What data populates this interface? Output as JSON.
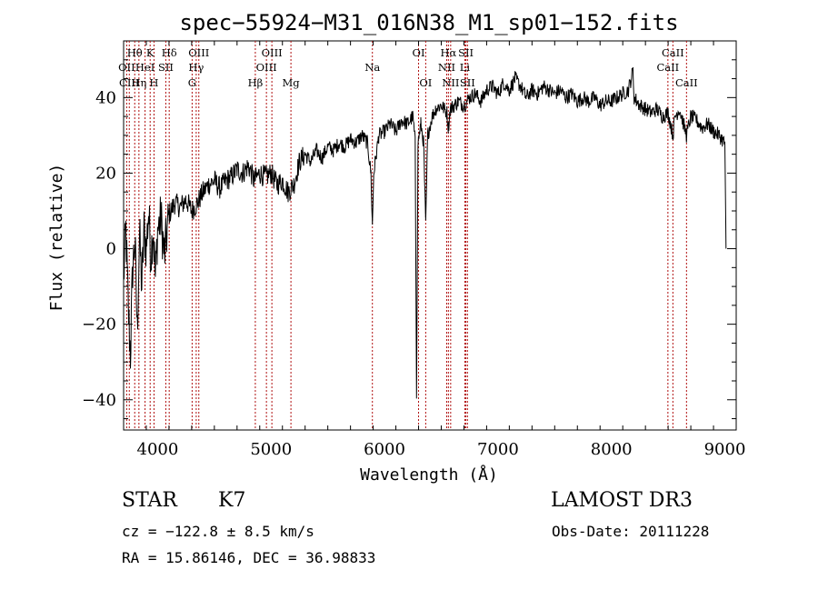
{
  "chart_data": {
    "type": "line",
    "title": "spec−55924−M31_016N38_M1_sp01−152.fits",
    "xlabel": "Wavelength (Å)",
    "ylabel": "Flux (relative)",
    "xlim": [
      3700,
      9100
    ],
    "ylim": [
      -48,
      55
    ],
    "xticks": [
      4000,
      5000,
      6000,
      7000,
      8000,
      9000
    ],
    "yticks": [
      -40,
      -20,
      0,
      20,
      40
    ],
    "ytick_labels": [
      "−40",
      "−20",
      "0",
      "20",
      "40"
    ],
    "series": [
      {
        "name": "flux",
        "anchors": [
          [
            3700,
            -8
          ],
          [
            3720,
            5
          ],
          [
            3740,
            -15
          ],
          [
            3760,
            -28
          ],
          [
            3780,
            -5
          ],
          [
            3800,
            2
          ],
          [
            3820,
            -22
          ],
          [
            3840,
            4
          ],
          [
            3860,
            -10
          ],
          [
            3880,
            5
          ],
          [
            3900,
            0
          ],
          [
            3920,
            10
          ],
          [
            3940,
            -2
          ],
          [
            3960,
            6
          ],
          [
            3980,
            -8
          ],
          [
            4000,
            5
          ],
          [
            4030,
            8
          ],
          [
            4060,
            -2
          ],
          [
            4100,
            9
          ],
          [
            4150,
            12
          ],
          [
            4200,
            11
          ],
          [
            4250,
            13
          ],
          [
            4300,
            10
          ],
          [
            4350,
            12
          ],
          [
            4400,
            15
          ],
          [
            4450,
            17
          ],
          [
            4500,
            18
          ],
          [
            4550,
            16
          ],
          [
            4600,
            18
          ],
          [
            4650,
            19
          ],
          [
            4700,
            21
          ],
          [
            4750,
            20
          ],
          [
            4800,
            22
          ],
          [
            4850,
            18
          ],
          [
            4900,
            20
          ],
          [
            4950,
            19
          ],
          [
            5000,
            20
          ],
          [
            5050,
            17
          ],
          [
            5100,
            18
          ],
          [
            5150,
            15
          ],
          [
            5200,
            17
          ],
          [
            5250,
            23
          ],
          [
            5300,
            25
          ],
          [
            5350,
            23
          ],
          [
            5400,
            26
          ],
          [
            5450,
            24
          ],
          [
            5500,
            27
          ],
          [
            5550,
            26
          ],
          [
            5600,
            28
          ],
          [
            5650,
            27
          ],
          [
            5700,
            29
          ],
          [
            5750,
            28
          ],
          [
            5800,
            30
          ],
          [
            5850,
            28
          ],
          [
            5880,
            20
          ],
          [
            5893,
            6
          ],
          [
            5905,
            20
          ],
          [
            5950,
            30
          ],
          [
            6000,
            31
          ],
          [
            6050,
            33
          ],
          [
            6100,
            31
          ],
          [
            6150,
            34
          ],
          [
            6200,
            33
          ],
          [
            6250,
            35
          ],
          [
            6270,
            28
          ],
          [
            6282,
            -38
          ],
          [
            6295,
            28
          ],
          [
            6320,
            33
          ],
          [
            6345,
            28
          ],
          [
            6363,
            6
          ],
          [
            6380,
            30
          ],
          [
            6420,
            35
          ],
          [
            6450,
            37
          ],
          [
            6500,
            38
          ],
          [
            6550,
            36
          ],
          [
            6563,
            32
          ],
          [
            6580,
            37
          ],
          [
            6650,
            39
          ],
          [
            6700,
            38
          ],
          [
            6750,
            40
          ],
          [
            6800,
            41
          ],
          [
            6850,
            39
          ],
          [
            6900,
            42
          ],
          [
            6950,
            43
          ],
          [
            7000,
            41
          ],
          [
            7050,
            44
          ],
          [
            7100,
            42
          ],
          [
            7150,
            45
          ],
          [
            7200,
            43
          ],
          [
            7250,
            40
          ],
          [
            7300,
            42
          ],
          [
            7350,
            41
          ],
          [
            7400,
            43
          ],
          [
            7450,
            42
          ],
          [
            7500,
            41
          ],
          [
            7550,
            42
          ],
          [
            7600,
            40
          ],
          [
            7650,
            41
          ],
          [
            7700,
            39
          ],
          [
            7750,
            40
          ],
          [
            7800,
            39
          ],
          [
            7850,
            40
          ],
          [
            7900,
            38
          ],
          [
            7950,
            39
          ],
          [
            8000,
            39
          ],
          [
            8050,
            40
          ],
          [
            8100,
            41
          ],
          [
            8150,
            42
          ],
          [
            8190,
            47
          ],
          [
            8200,
            40
          ],
          [
            8250,
            38
          ],
          [
            8300,
            37
          ],
          [
            8350,
            36
          ],
          [
            8400,
            37
          ],
          [
            8450,
            35
          ],
          [
            8500,
            36
          ],
          [
            8542,
            30
          ],
          [
            8560,
            35
          ],
          [
            8600,
            37
          ],
          [
            8662,
            30
          ],
          [
            8700,
            35
          ],
          [
            8750,
            34
          ],
          [
            8800,
            32
          ],
          [
            8850,
            33
          ],
          [
            8900,
            31
          ],
          [
            8950,
            30
          ],
          [
            9000,
            28
          ],
          [
            9010,
            0
          ]
        ]
      }
    ],
    "lines": [
      {
        "label": "Hθ",
        "lambda": 3798,
        "row": 1
      },
      {
        "label": "OII",
        "lambda": 3727,
        "row": 2
      },
      {
        "label": "CIII",
        "lambda": 3750,
        "row": 3
      },
      {
        "label": "K",
        "lambda": 3934,
        "row": 1
      },
      {
        "label": "HeI",
        "lambda": 3889,
        "row": 2
      },
      {
        "label": "Hη",
        "lambda": 3835,
        "row": 3
      },
      {
        "label": "H",
        "lambda": 3968,
        "row": 3
      },
      {
        "label": "Hδ",
        "lambda": 4102,
        "row": 1
      },
      {
        "label": "SII",
        "lambda": 4072,
        "row": 2
      },
      {
        "label": "OIII",
        "lambda": 4363,
        "row": 1
      },
      {
        "label": "Hγ",
        "lambda": 4340,
        "row": 2
      },
      {
        "label": "G",
        "lambda": 4304,
        "row": 3
      },
      {
        "label": "OIII",
        "lambda": 5007,
        "row": 1
      },
      {
        "label": "OIII",
        "lambda": 4959,
        "row": 2
      },
      {
        "label": "Hβ",
        "lambda": 4861,
        "row": 3
      },
      {
        "label": "Mg",
        "lambda": 5175,
        "row": 3
      },
      {
        "label": "Na",
        "lambda": 5893,
        "row": 2
      },
      {
        "label": "OI",
        "lambda": 6300,
        "row": 1
      },
      {
        "label": "OI",
        "lambda": 6363,
        "row": 3
      },
      {
        "label": "Hα",
        "lambda": 6563,
        "row": 1
      },
      {
        "label": "NII",
        "lambda": 6548,
        "row": 2
      },
      {
        "label": "NII",
        "lambda": 6583,
        "row": 3
      },
      {
        "label": "SII",
        "lambda": 6717,
        "row": 1
      },
      {
        "label": "Li",
        "lambda": 6708,
        "row": 2
      },
      {
        "label": "SII",
        "lambda": 6731,
        "row": 3
      },
      {
        "label": "CaII",
        "lambda": 8542,
        "row": 1
      },
      {
        "label": "CaII",
        "lambda": 8498,
        "row": 2
      },
      {
        "label": "CaII",
        "lambda": 8662,
        "row": 3
      }
    ]
  },
  "info": {
    "object_class": "STAR",
    "subclass": "K7",
    "survey": "LAMOST DR3",
    "cz": "cz = −122.8 ± 8.5 km/s",
    "obs_date": "Obs-Date: 20111228",
    "radec": "RA =  15.86146, DEC =  36.98833"
  },
  "colors": {
    "line_marker": "#b01010",
    "spectrum": "#000000"
  }
}
